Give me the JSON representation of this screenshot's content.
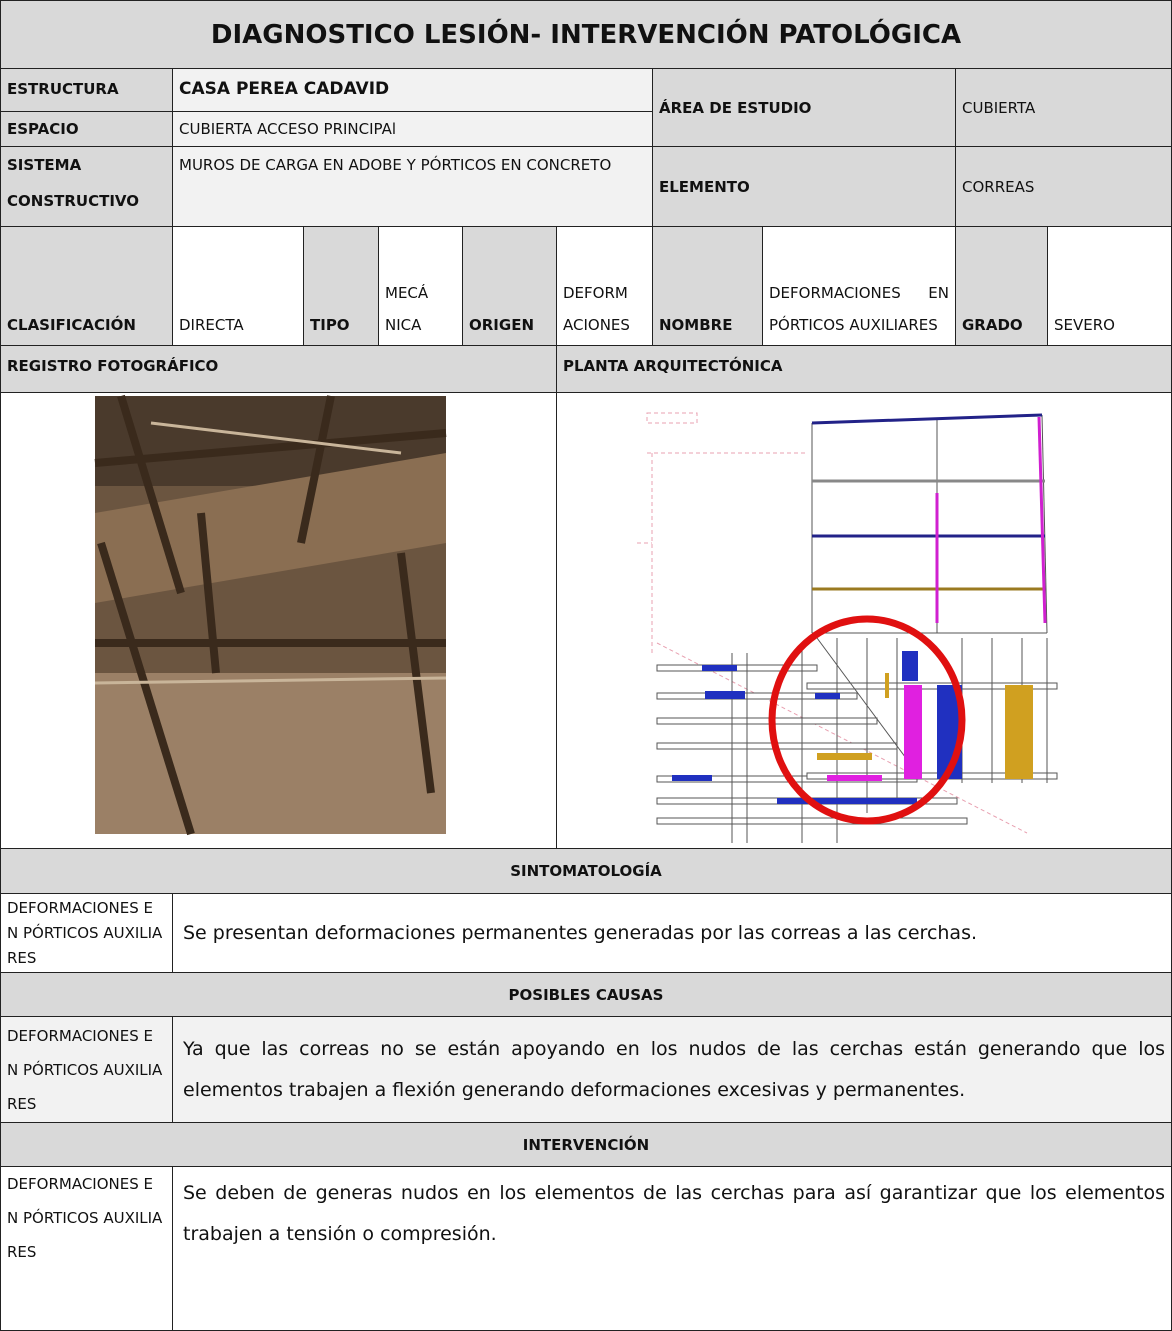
{
  "header": {
    "title": "DIAGNOSTICO LESIÓN- INTERVENCIÓN PATOLÓGICA"
  },
  "info": {
    "estructura_label": "ESTRUCTURA",
    "estructura": "CASA PEREA CADAVID",
    "espacio_label": "ESPACIO",
    "espacio": "CUBIERTA ACCESO PRINCIPAl",
    "area_label": "ÁREA DE ESTUDIO",
    "area": "CUBIERTA",
    "sistema_label": "SISTEMA CONSTRUCTIVO",
    "sistema": "MUROS DE CARGA EN ADOBE Y PÓRTICOS EN CONCRETO",
    "elemento_label": "ELEMENTO",
    "elemento": "CORREAS"
  },
  "clasificacion": {
    "clasificacion_label": "CLASIFICACIÓN",
    "clasificacion": "DIRECTA",
    "tipo_label": "TIPO",
    "tipo": "MECÁNICA",
    "origen_label": "ORIGEN",
    "origen": "DEFORMACIONES",
    "nombre_label": "NOMBRE",
    "nombre": "DEFORMACIONES EN PÓRTICOS AUXILIARES",
    "grado_label": "GRADO",
    "grado": "SEVERO"
  },
  "sections": {
    "registro": "REGISTRO FOTOGRÁFICO",
    "planta": "PLANTA ARQUITECTÓNICA"
  },
  "sintomatologia": {
    "title": "SINTOMATOLOGÍA",
    "label": "DEFORMACIONES EN PÓRTICOS AUXILIARES",
    "text": "Se presentan deformaciones permanentes generadas por las correas a las cerchas."
  },
  "causas": {
    "title": "POSIBLES CAUSAS",
    "label": "DEFORMACIONES EN PÓRTICOS AUXILIARES",
    "text": "Ya que las correas no se están apoyando en los nudos de las cerchas están generando que los elementos trabajen a flexión generando deformaciones excesivas y permanentes."
  },
  "intervencion": {
    "title": "INTERVENCIÓN",
    "label": "DEFORMACIONES EN PÓRTICOS AUXILIARES",
    "text": "Se deben de generas nudos en los elementos de las cerchas para así garantizar que los elementos trabajen a tensión o compresión."
  }
}
